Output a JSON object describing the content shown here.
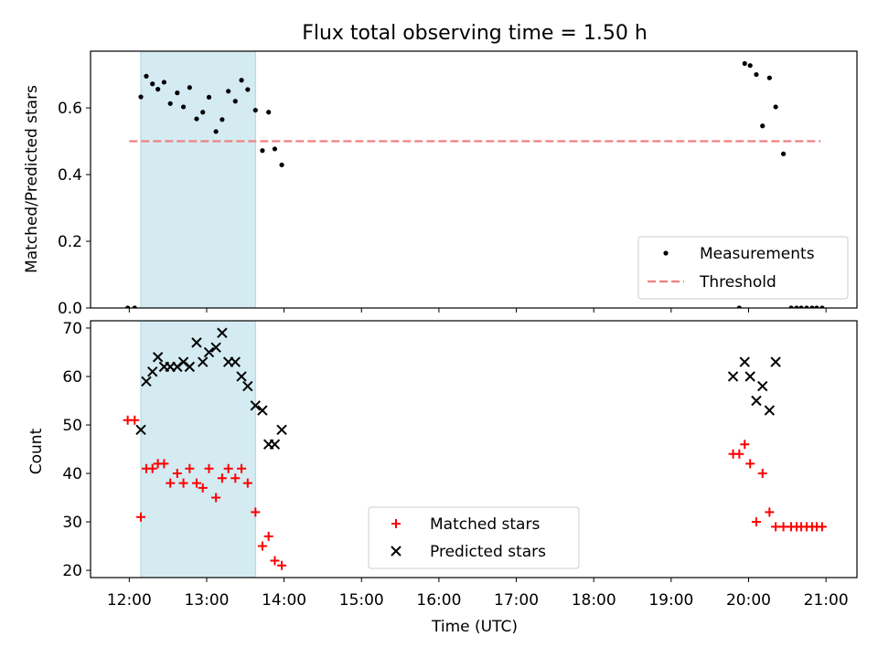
{
  "chart_data": [
    {
      "type": "scatter",
      "title": "Flux total observing time = 1.50 h",
      "ylabel": "Matched/Predicted stars",
      "xlabel": "",
      "xlim": [
        11.5,
        21.4
      ],
      "ylim": [
        0.0,
        0.77
      ],
      "yticks": [
        0.0,
        0.2,
        0.4,
        0.6
      ],
      "ytick_labels": [
        "0.0",
        "0.2",
        "0.4",
        "0.6"
      ],
      "shaded_span": [
        12.15,
        13.63
      ],
      "shaded_color": "#d4ebf2",
      "threshold": {
        "name": "Threshold",
        "y": 0.5,
        "x_range": [
          12.0,
          20.93
        ],
        "color": "#f08080"
      },
      "series": [
        {
          "name": "Measurements",
          "color": "#000000",
          "x": [
            11.98,
            12.07,
            12.15,
            12.22,
            12.3,
            12.37,
            12.45,
            12.53,
            12.62,
            12.7,
            12.78,
            12.87,
            12.95,
            13.03,
            13.12,
            13.2,
            13.28,
            13.37,
            13.45,
            13.53,
            13.63,
            13.72,
            13.8,
            13.88,
            13.97,
            19.88,
            19.95,
            20.02,
            20.1,
            20.18,
            20.27,
            20.35,
            20.45,
            20.55,
            20.62,
            20.68,
            20.75,
            20.82,
            20.88,
            20.95
          ],
          "y": [
            0.0,
            0.0,
            0.633,
            0.695,
            0.672,
            0.656,
            0.677,
            0.613,
            0.645,
            0.603,
            0.661,
            0.567,
            0.587,
            0.632,
            0.529,
            0.565,
            0.65,
            0.62,
            0.683,
            0.655,
            0.593,
            0.472,
            0.587,
            0.477,
            0.429,
            0.0,
            0.733,
            0.727,
            0.7,
            0.546,
            0.69,
            0.603,
            0.462,
            0.0,
            0.0,
            0.0,
            0.0,
            0.0,
            0.0,
            0.0
          ]
        }
      ],
      "legend": {
        "placement": "lower right",
        "entries": [
          "Measurements",
          "Threshold"
        ]
      }
    },
    {
      "type": "scatter",
      "title": "",
      "ylabel": "Count",
      "xlabel": "Time (UTC)",
      "xlim": [
        11.5,
        21.4
      ],
      "ylim": [
        18.5,
        71.5
      ],
      "yticks": [
        20,
        30,
        40,
        50,
        60,
        70
      ],
      "ytick_labels": [
        "20",
        "30",
        "40",
        "50",
        "60",
        "70"
      ],
      "xticks": [
        12,
        13,
        14,
        15,
        16,
        17,
        18,
        19,
        20,
        21
      ],
      "xtick_labels": [
        "12:00",
        "13:00",
        "14:00",
        "15:00",
        "16:00",
        "17:00",
        "18:00",
        "19:00",
        "20:00",
        "21:00"
      ],
      "shaded_span": [
        12.15,
        13.63
      ],
      "shaded_color": "#d4ebf2",
      "series": [
        {
          "name": "Matched stars",
          "marker": "plus",
          "color": "#ff0000",
          "x": [
            11.98,
            12.07,
            12.15,
            12.22,
            12.3,
            12.37,
            12.45,
            12.53,
            12.62,
            12.7,
            12.78,
            12.87,
            12.95,
            13.03,
            13.12,
            13.2,
            13.28,
            13.37,
            13.45,
            13.53,
            13.63,
            13.72,
            13.8,
            13.88,
            13.97,
            19.8,
            19.88,
            19.95,
            20.02,
            20.1,
            20.18,
            20.27,
            20.35,
            20.45,
            20.55,
            20.62,
            20.68,
            20.75,
            20.82,
            20.88,
            20.95
          ],
          "y": [
            51,
            51,
            31,
            41,
            41,
            42,
            42,
            38,
            40,
            38,
            41,
            38,
            37,
            41,
            35,
            39,
            41,
            39,
            41,
            38,
            32,
            25,
            27,
            22,
            21,
            44,
            44,
            46,
            42,
            30,
            40,
            32,
            29,
            29,
            29,
            29,
            29,
            29,
            29,
            29,
            29
          ]
        },
        {
          "name": "Predicted stars",
          "marker": "x",
          "color": "#000000",
          "x": [
            12.15,
            12.22,
            12.3,
            12.37,
            12.45,
            12.53,
            12.62,
            12.7,
            12.78,
            12.87,
            12.95,
            13.03,
            13.12,
            13.2,
            13.28,
            13.37,
            13.45,
            13.53,
            13.63,
            13.72,
            13.8,
            13.88,
            13.97,
            19.8,
            19.95,
            20.02,
            20.1,
            20.18,
            20.27,
            20.35
          ],
          "y": [
            49,
            59,
            61,
            64,
            62,
            62,
            62,
            63,
            62,
            67,
            63,
            65,
            66,
            69,
            63,
            63,
            60,
            58,
            54,
            53,
            46,
            46,
            49,
            60,
            63,
            60,
            55,
            58,
            53,
            63
          ]
        }
      ],
      "legend": {
        "placement": "lower center",
        "entries": [
          "Matched stars",
          "Predicted stars"
        ]
      }
    }
  ]
}
